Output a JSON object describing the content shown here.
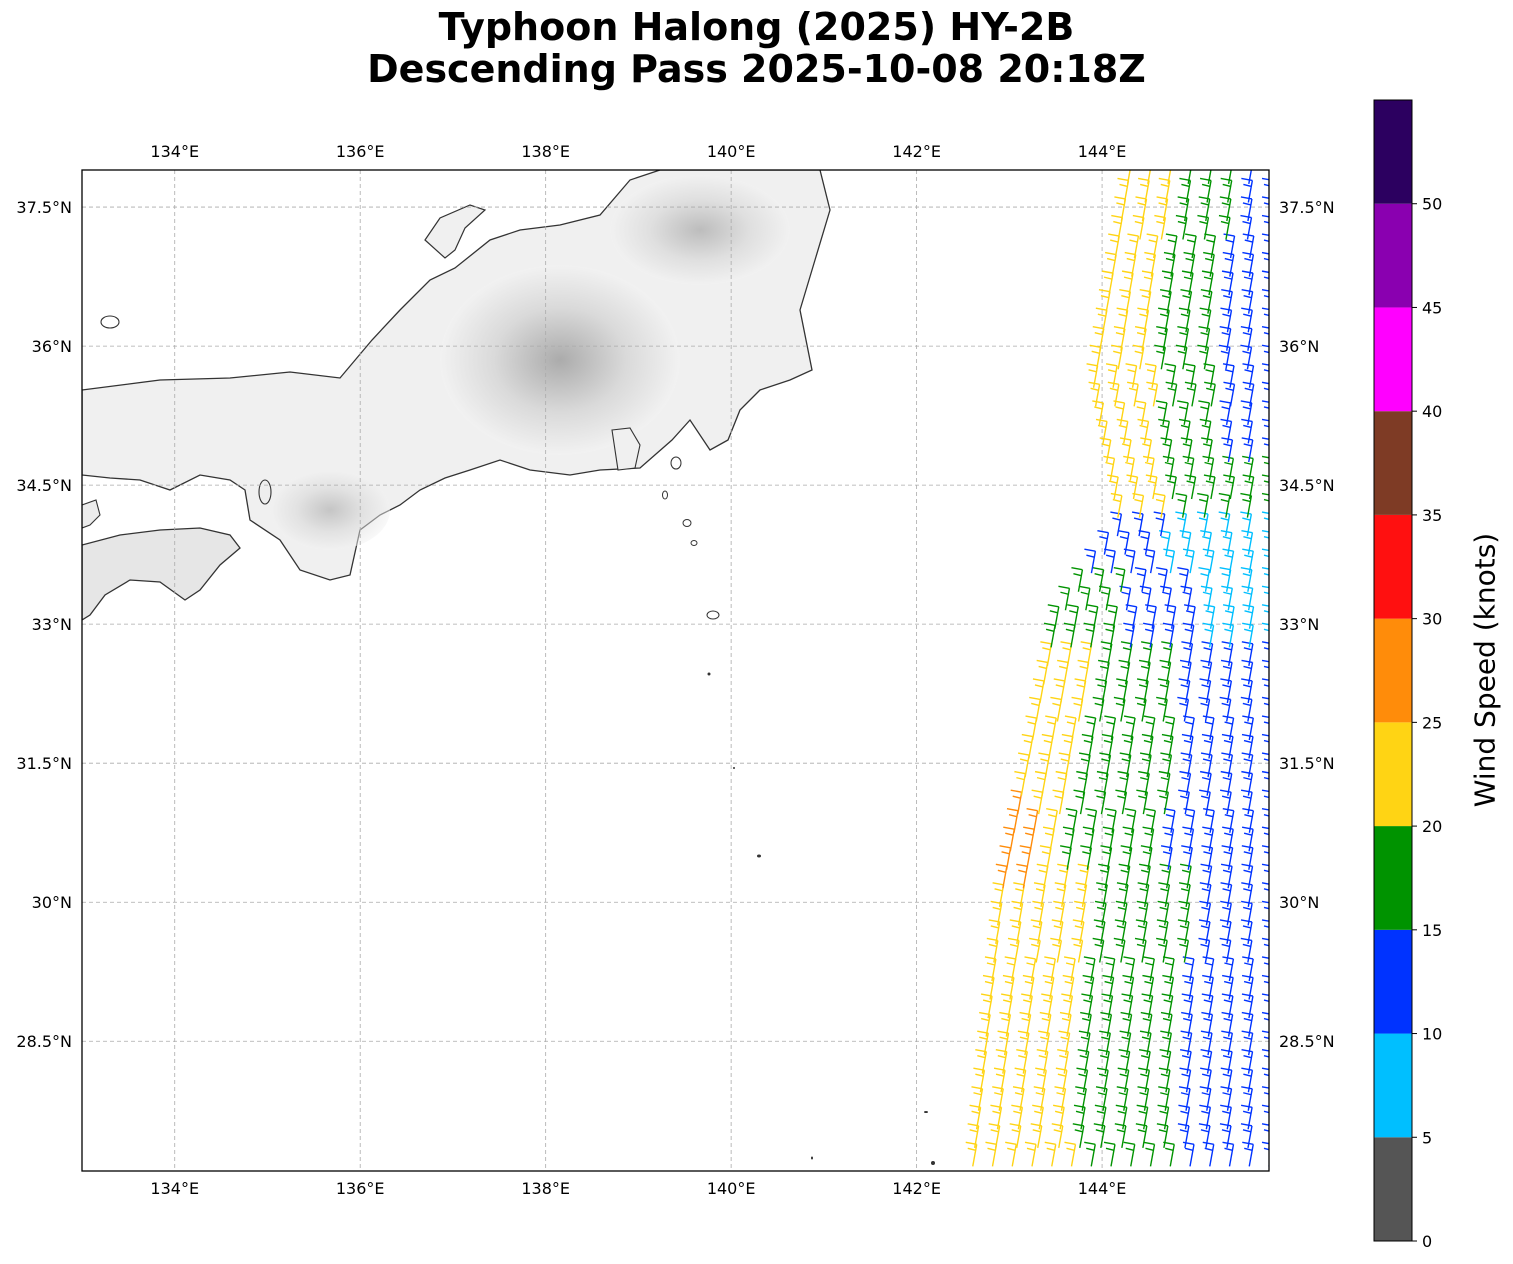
{
  "title": {
    "line1": "Typhoon Halong (2025) HY-2B",
    "line2": "Descending Pass 2025-10-08 20:18Z"
  },
  "map": {
    "extent": {
      "lon_min": 133.0,
      "lon_max": 145.8,
      "lat_min": 27.1,
      "lat_max": 37.9
    },
    "lon_ticks": [
      {
        "value": 134,
        "label": "134°E"
      },
      {
        "value": 136,
        "label": "136°E"
      },
      {
        "value": 138,
        "label": "138°E"
      },
      {
        "value": 140,
        "label": "140°E"
      },
      {
        "value": 142,
        "label": "142°E"
      },
      {
        "value": 144,
        "label": "144°E"
      }
    ],
    "lat_ticks": [
      {
        "value": 37.5,
        "label": "37.5°N"
      },
      {
        "value": 36.0,
        "label": "36°N"
      },
      {
        "value": 34.5,
        "label": "34.5°N"
      },
      {
        "value": 33.0,
        "label": "33°N"
      },
      {
        "value": 31.5,
        "label": "31.5°N"
      },
      {
        "value": 30.0,
        "label": "30°N"
      },
      {
        "value": 28.5,
        "label": "28.5°N"
      }
    ],
    "gridlines": true,
    "land_shading": "grayscale terrain",
    "coastline_color": "#333333"
  },
  "colorbar": {
    "label": "Wind Speed (knots)",
    "bins": [
      {
        "min": 0,
        "max": 5,
        "color": "#555555"
      },
      {
        "min": 5,
        "max": 10,
        "color": "#00BFFF"
      },
      {
        "min": 10,
        "max": 15,
        "color": "#0033FF"
      },
      {
        "min": 15,
        "max": 20,
        "color": "#009300"
      },
      {
        "min": 20,
        "max": 25,
        "color": "#FFD414"
      },
      {
        "min": 25,
        "max": 30,
        "color": "#FF8C0A"
      },
      {
        "min": 30,
        "max": 35,
        "color": "#FF1010"
      },
      {
        "min": 35,
        "max": 40,
        "color": "#7E3B25"
      },
      {
        "min": 40,
        "max": 45,
        "color": "#FF00FF"
      },
      {
        "min": 45,
        "max": 50,
        "color": "#8A00B0"
      },
      {
        "min": 50,
        "max": 55,
        "color": "#2C0060"
      }
    ],
    "ticks": [
      0,
      5,
      10,
      15,
      20,
      25,
      30,
      35,
      40,
      45,
      50
    ]
  },
  "wind_swath": {
    "instrument": "HY-2B scatterometer",
    "pass": "descending",
    "direction": "southwesterly to westerly flow",
    "speed_range_kt": [
      3,
      30
    ],
    "west_edge": [
      [
        144.3,
        37.9
      ],
      [
        143.9,
        35.5
      ],
      [
        144.2,
        34.0
      ],
      [
        143.5,
        33.0
      ],
      [
        143.2,
        31.5
      ],
      [
        142.9,
        30.0
      ],
      [
        142.6,
        27.1
      ]
    ],
    "east_edge": [
      [
        145.8,
        37.9
      ],
      [
        145.8,
        27.1
      ]
    ],
    "bands": [
      {
        "lat_min": 34.7,
        "lat_max": 37.9,
        "offset_min": 0.0,
        "offset_max": 0.35,
        "color": "#FFD414"
      },
      {
        "lat_min": 34.7,
        "lat_max": 37.9,
        "offset_min": 0.35,
        "offset_max": 0.75,
        "color": "#009300"
      },
      {
        "lat_min": 34.7,
        "lat_max": 37.9,
        "offset_min": 0.75,
        "offset_max": 1.0,
        "color": "#0033FF"
      },
      {
        "lat_min": 34.1,
        "lat_max": 34.7,
        "offset_min": 0.0,
        "offset_max": 0.3,
        "color": "#FFD414"
      },
      {
        "lat_min": 34.1,
        "lat_max": 34.7,
        "offset_min": 0.3,
        "offset_max": 1.0,
        "color": "#009300"
      },
      {
        "lat_min": 33.5,
        "lat_max": 34.1,
        "offset_min": 0.0,
        "offset_max": 0.35,
        "color": "#0033FF"
      },
      {
        "lat_min": 33.5,
        "lat_max": 34.1,
        "offset_min": 0.35,
        "offset_max": 1.0,
        "color": "#00BFFF"
      },
      {
        "lat_min": 32.6,
        "lat_max": 33.5,
        "offset_min": 0.0,
        "offset_max": 0.3,
        "color": "#009300"
      },
      {
        "lat_min": 32.6,
        "lat_max": 33.5,
        "offset_min": 0.3,
        "offset_max": 0.65,
        "color": "#0033FF"
      },
      {
        "lat_min": 32.6,
        "lat_max": 33.5,
        "offset_min": 0.65,
        "offset_max": 1.0,
        "color": "#00BFFF"
      },
      {
        "lat_min": 30.3,
        "lat_max": 32.6,
        "offset_min": 0.0,
        "offset_max": 0.22,
        "color": "#FFD414"
      },
      {
        "lat_min": 30.3,
        "lat_max": 32.6,
        "offset_min": 0.22,
        "offset_max": 0.6,
        "color": "#009300"
      },
      {
        "lat_min": 30.3,
        "lat_max": 32.6,
        "offset_min": 0.6,
        "offset_max": 1.0,
        "color": "#0033FF"
      },
      {
        "lat_min": 27.1,
        "lat_max": 30.3,
        "offset_min": 0.0,
        "offset_max": 0.35,
        "color": "#FFD414"
      },
      {
        "lat_min": 27.1,
        "lat_max": 30.3,
        "offset_min": 0.35,
        "offset_max": 0.7,
        "color": "#009300"
      },
      {
        "lat_min": 27.1,
        "lat_max": 30.3,
        "offset_min": 0.7,
        "offset_max": 1.0,
        "color": "#0033FF"
      },
      {
        "lat_min": 30.0,
        "lat_max": 31.1,
        "offset_min": 0.0,
        "offset_max": 0.08,
        "color": "#FF8C0A"
      }
    ]
  }
}
